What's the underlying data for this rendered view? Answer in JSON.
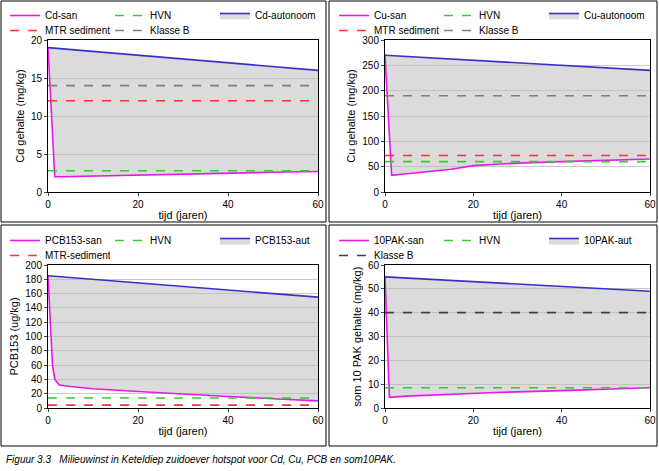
{
  "chart_data": [
    {
      "type": "line",
      "xlabel": "tijd (jaren)",
      "ylabel": "Cd gehalte (mg/kg)",
      "xlim": [
        0,
        60
      ],
      "xticks": [
        0,
        20,
        40,
        60
      ],
      "ylim": [
        0,
        20
      ],
      "yticks": [
        0,
        5,
        10,
        15,
        20
      ],
      "grid": true,
      "legend": "top",
      "series": [
        {
          "name": "Cd-san",
          "color": "#e619e6",
          "line_style": "solid",
          "x": [
            0,
            1.5,
            3,
            10,
            20,
            30,
            40,
            50,
            60
          ],
          "values": [
            19,
            2.0,
            2.0,
            2.1,
            2.25,
            2.4,
            2.5,
            2.6,
            2.7
          ]
        },
        {
          "name": "HVN",
          "color": "#33cc33",
          "line_style": "dash",
          "x": [
            0,
            60
          ],
          "values": [
            2.8,
            2.8
          ]
        },
        {
          "name": "Cd-autonoom",
          "color": "#3333cc",
          "line_style": "solid",
          "x": [
            0,
            60
          ],
          "values": [
            19,
            16
          ]
        },
        {
          "name": "MTR sediment",
          "color": "#ff3333",
          "line_style": "dash",
          "x": [
            0,
            60
          ],
          "values": [
            12,
            12
          ]
        },
        {
          "name": "Klasse B",
          "color": "#808080",
          "line_style": "dash",
          "x": [
            0,
            60
          ],
          "values": [
            14,
            14
          ]
        }
      ]
    },
    {
      "type": "line",
      "xlabel": "tijd (jaren)",
      "ylabel": "Cu gehalte (mg/kg)",
      "xlim": [
        0,
        60
      ],
      "xticks": [
        0,
        20,
        40,
        60
      ],
      "ylim": [
        0,
        300
      ],
      "yticks": [
        0,
        50,
        100,
        150,
        200,
        250,
        300
      ],
      "grid": true,
      "legend": "top",
      "series": [
        {
          "name": "Cu-san",
          "color": "#e619e6",
          "line_style": "solid",
          "x": [
            0,
            1.5,
            5,
            15,
            20,
            30,
            40,
            50,
            60
          ],
          "values": [
            270,
            33,
            36,
            45,
            52,
            57,
            60,
            63,
            65
          ]
        },
        {
          "name": "HVN",
          "color": "#33cc33",
          "line_style": "dash",
          "x": [
            0,
            60
          ],
          "values": [
            60,
            60
          ]
        },
        {
          "name": "Cu-autonoom",
          "color": "#3333cc",
          "line_style": "solid",
          "x": [
            0,
            60
          ],
          "values": [
            270,
            240
          ]
        },
        {
          "name": "MTR sediment",
          "color": "#ff3333",
          "line_style": "dash",
          "x": [
            0,
            60
          ],
          "values": [
            72,
            72
          ]
        },
        {
          "name": "Klasse B",
          "color": "#808080",
          "line_style": "dash",
          "x": [
            0,
            60
          ],
          "values": [
            190,
            190
          ]
        }
      ]
    },
    {
      "type": "line",
      "xlabel": "tijd (jaren)",
      "ylabel": "PCB153 (ug/kg)",
      "xlim": [
        0,
        60
      ],
      "xticks": [
        0,
        20,
        40,
        60
      ],
      "ylim": [
        0,
        200
      ],
      "yticks": [
        0,
        20,
        40,
        60,
        80,
        100,
        120,
        140,
        160,
        180,
        200
      ],
      "grid": true,
      "legend": "top",
      "series": [
        {
          "name": "PCB153-san",
          "color": "#e619e6",
          "line_style": "solid",
          "x": [
            0,
            1,
            1.5,
            2.5,
            5,
            10,
            20,
            30,
            40,
            50,
            60
          ],
          "values": [
            185,
            60,
            40,
            32,
            30,
            27,
            23,
            19,
            16,
            13,
            10
          ]
        },
        {
          "name": "HVN",
          "color": "#33cc33",
          "line_style": "dash",
          "x": [
            0,
            60
          ],
          "values": [
            14,
            14
          ]
        },
        {
          "name": "PCB153-aut",
          "color": "#3333cc",
          "line_style": "solid",
          "x": [
            0,
            60
          ],
          "values": [
            185,
            155
          ]
        },
        {
          "name": "MTR-sediment",
          "color": "#ff3333",
          "line_style": "dash",
          "x": [
            0,
            60
          ],
          "values": [
            4,
            4
          ]
        }
      ]
    },
    {
      "type": "line",
      "xlabel": "tijd (jaren)",
      "ylabel": "som 10 PAK gehalte (mg/kg)",
      "xlim": [
        0,
        60
      ],
      "xticks": [
        0,
        20,
        40,
        60
      ],
      "ylim": [
        0,
        60
      ],
      "yticks": [
        0,
        10,
        20,
        30,
        40,
        50,
        60
      ],
      "grid": true,
      "legend": "top",
      "series": [
        {
          "name": "10PAK-san",
          "color": "#e619e6",
          "line_style": "solid",
          "x": [
            0,
            1,
            5,
            15,
            25,
            40,
            50,
            60
          ],
          "values": [
            55,
            4.5,
            5,
            5.8,
            6.5,
            7.3,
            8,
            8.5
          ]
        },
        {
          "name": "HVN",
          "color": "#33cc33",
          "line_style": "dash",
          "x": [
            0,
            60
          ],
          "values": [
            8.5,
            8.5
          ]
        },
        {
          "name": "10PAK-aut",
          "color": "#3333cc",
          "line_style": "solid",
          "x": [
            0,
            60
          ],
          "values": [
            55,
            49
          ]
        },
        {
          "name": "Klasse B",
          "color": "#404040",
          "line_style": "dash",
          "x": [
            0,
            60
          ],
          "values": [
            40,
            40
          ]
        }
      ]
    }
  ],
  "caption": "Figuur 3.3   Milieuwinst in Keteldiep zuidoever hotspot voor Cd, Cu, PCB en som10PAK."
}
